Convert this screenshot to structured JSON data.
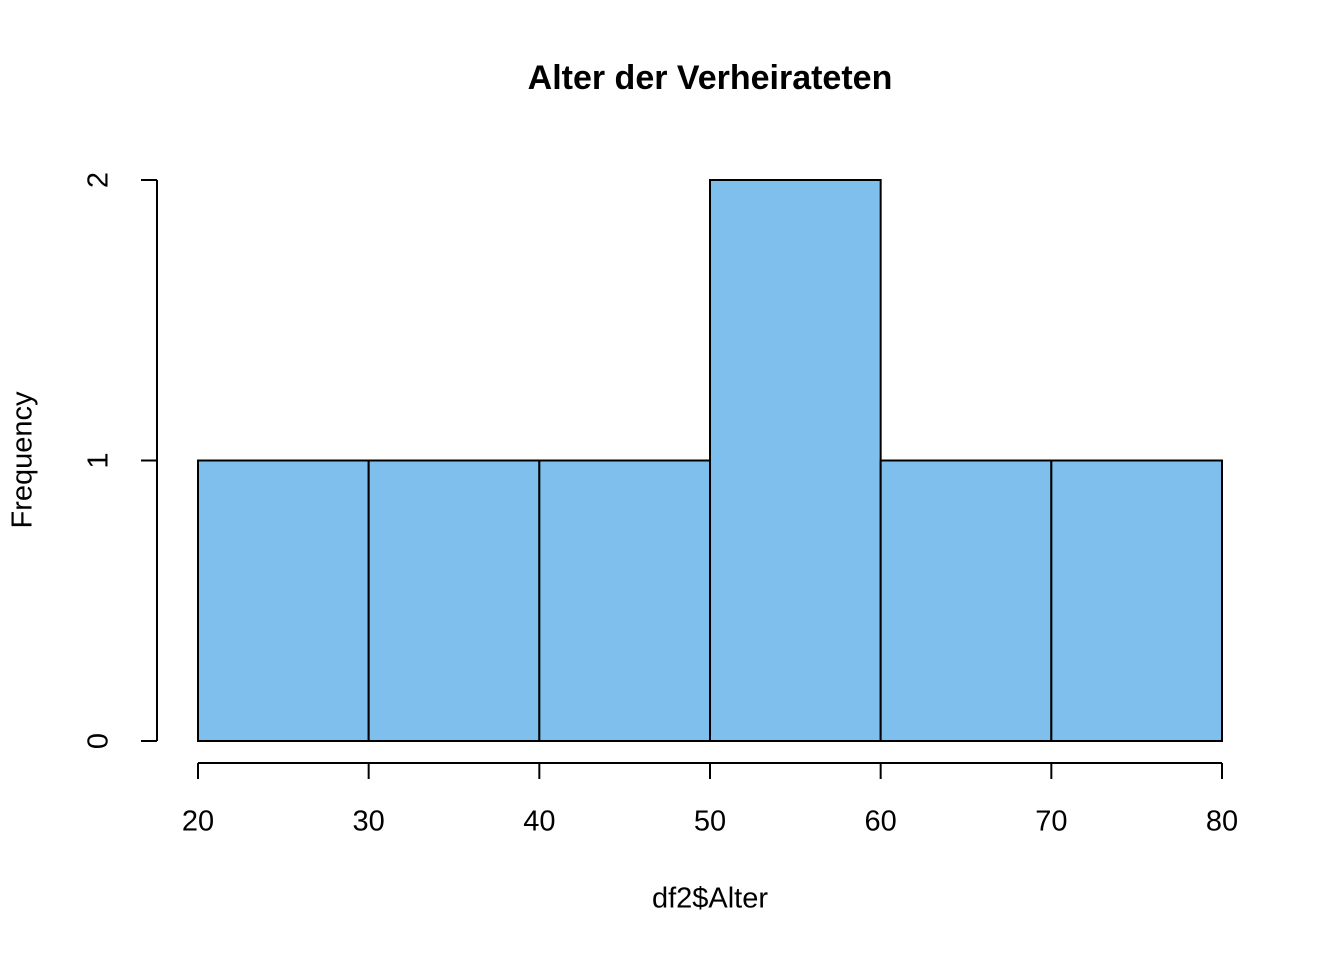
{
  "chart_data": {
    "type": "histogram",
    "title": "Alter der Verheirateten",
    "xlabel": "df2$Alter",
    "ylabel": "Frequency",
    "bins": [
      20,
      30,
      40,
      50,
      60,
      70,
      80
    ],
    "values": [
      1,
      1,
      1,
      2,
      1,
      1
    ],
    "color": "#7fbfed",
    "xlim": [
      20,
      80
    ],
    "xticks": [
      20,
      30,
      40,
      50,
      60,
      70,
      80
    ],
    "ylim": [
      0,
      2
    ],
    "yticks": [
      0,
      1,
      2
    ]
  }
}
